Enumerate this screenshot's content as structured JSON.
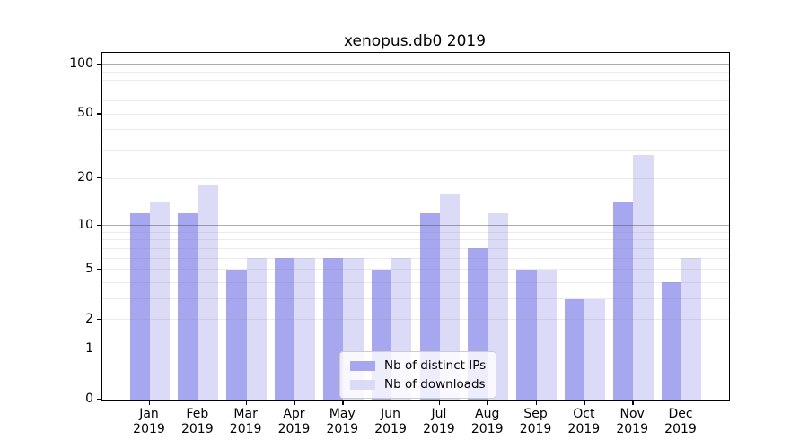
{
  "title": "xenopus.db0 2019",
  "colors": {
    "ips_bar": "#a7a7f0",
    "downloads_bar": "#dbdbf7",
    "major_gridline": "#b0b0b0",
    "minor_gridline": "#ebebeb",
    "axis": "#000000",
    "legend_border": "#cccccc"
  },
  "legend": {
    "items": [
      "Nb of distinct IPs",
      "Nb of downloads"
    ]
  },
  "chart_data": {
    "type": "bar",
    "title": "xenopus.db0 2019",
    "categories": [
      "Jan",
      "Feb",
      "Mar",
      "Apr",
      "May",
      "Jun",
      "Jul",
      "Aug",
      "Sep",
      "Oct",
      "Nov",
      "Dec"
    ],
    "year_label": "2019",
    "series": [
      {
        "name": "Nb of distinct IPs",
        "color": "#a7a7f0",
        "values": [
          12,
          12,
          5,
          6,
          6,
          5,
          12,
          7,
          5,
          3,
          14,
          4
        ]
      },
      {
        "name": "Nb of downloads",
        "color": "#dbdbf7",
        "values": [
          14,
          18,
          6,
          6,
          6,
          6,
          16,
          12,
          5,
          3,
          28,
          6
        ]
      }
    ],
    "y_scale": "log1p",
    "y_ticks": [
      0,
      1,
      2,
      5,
      10,
      20,
      50,
      100
    ],
    "y_minor_ticks": [
      3,
      4,
      6,
      7,
      8,
      9,
      30,
      40,
      60,
      70,
      80,
      90
    ],
    "y_major_gridlines": [
      1,
      10,
      100
    ],
    "ylim": [
      0,
      115
    ],
    "xlabel": "",
    "ylabel": "",
    "grid": true,
    "legend_position": "lower center"
  }
}
